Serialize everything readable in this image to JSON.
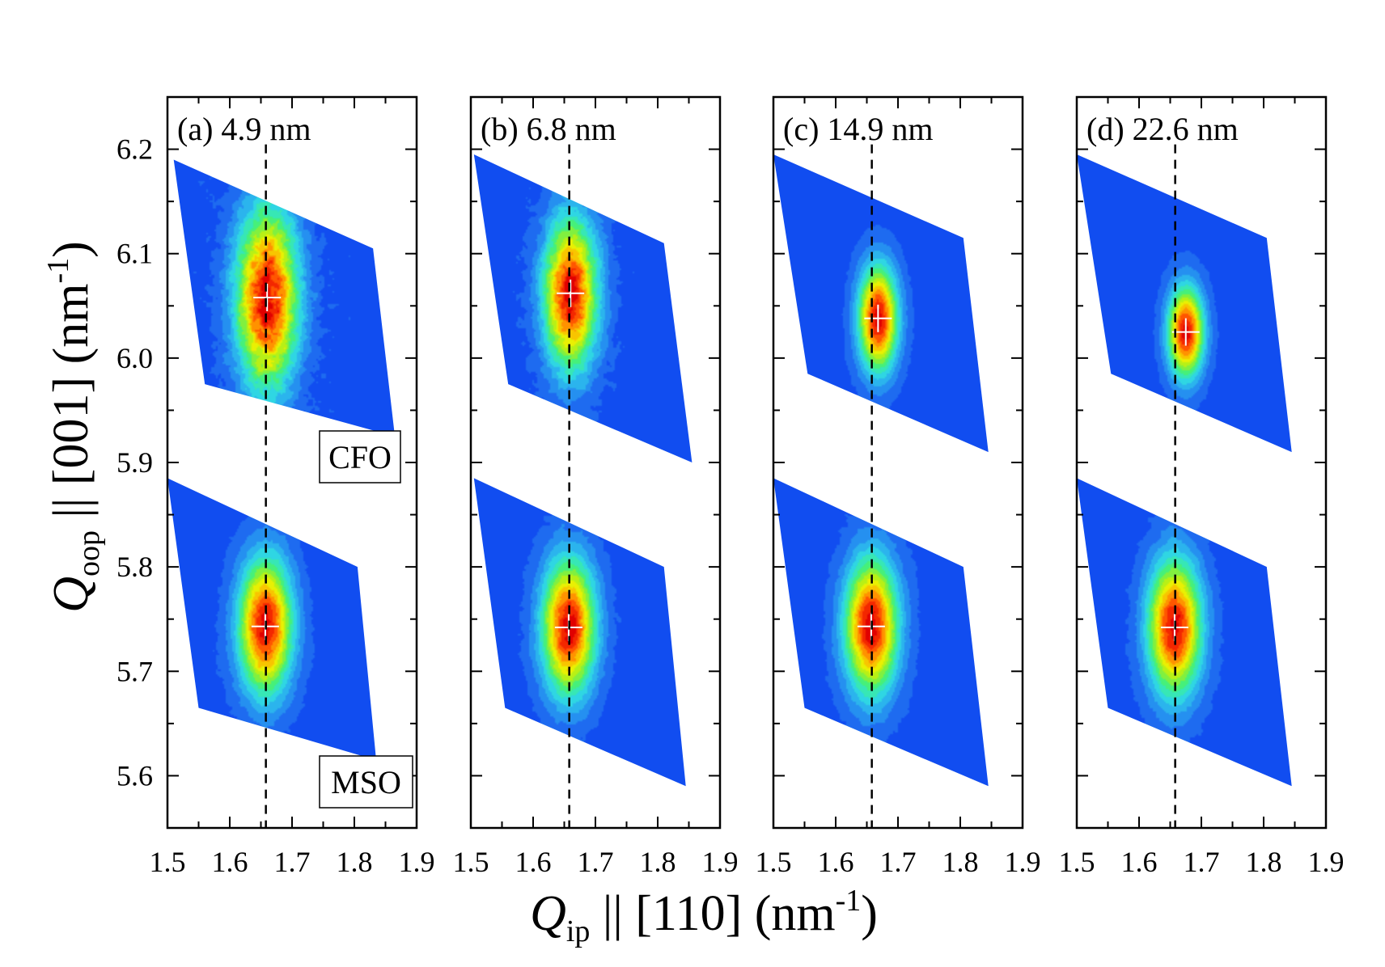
{
  "chart_data": {
    "type": "heatmap",
    "description_type": "reciprocal space maps",
    "xlabel": {
      "symbol": "Q",
      "sub": "ip",
      "rest": " || [110] (nm",
      "sup": "-1",
      "close": ")"
    },
    "ylabel": {
      "symbol": "Q",
      "sub": "oop",
      "rest": " || [001] (nm",
      "sup": "-1",
      "close": ")"
    },
    "xlim": [
      1.5,
      1.9
    ],
    "ylim": [
      5.55,
      6.25
    ],
    "xticks": [
      1.5,
      1.6,
      1.7,
      1.8,
      1.9
    ],
    "xtick_labels": [
      "1.5",
      "1.6",
      "1.7",
      "1.8",
      "1.9"
    ],
    "yticks": [
      5.6,
      5.7,
      5.8,
      5.9,
      6.0,
      6.1,
      6.2
    ],
    "ytick_labels": [
      "5.6",
      "5.7",
      "5.8",
      "5.9",
      "6.0",
      "6.1",
      "6.2"
    ],
    "colormap": [
      "#0a3cf0",
      "#1e6cf0",
      "#2aa8f0",
      "#30e0e0",
      "#40f080",
      "#a0f020",
      "#f0f000",
      "#ffa000",
      "#ff4000",
      "#e00000"
    ],
    "background_color": "#0b3ff2",
    "peak_marker_color": "#ffffff",
    "reference_line_x": 1.658,
    "box_labels": {
      "film": "CFO",
      "substrate": "MSO"
    },
    "panels": [
      {
        "label": "(a) 4.9 nm",
        "film": {
          "name": "CFO",
          "peak_x": 1.66,
          "peak_y": 6.058,
          "sx": 0.035,
          "sy": 0.06,
          "noise": 0.22,
          "region": [
            [
              1.51,
              6.19
            ],
            [
              1.83,
              6.105
            ],
            [
              1.865,
              5.925
            ],
            [
              1.56,
              5.975
            ]
          ]
        },
        "substrate": {
          "name": "MSO",
          "peak_x": 1.657,
          "peak_y": 5.743,
          "sx": 0.03,
          "sy": 0.045,
          "noise": 0.1,
          "region": [
            [
              1.5,
              5.885
            ],
            [
              1.805,
              5.8
            ],
            [
              1.835,
              5.615
            ],
            [
              1.55,
              5.665
            ]
          ]
        }
      },
      {
        "label": "(b) 6.8 nm",
        "film": {
          "name": "CFO",
          "peak_x": 1.66,
          "peak_y": 6.062,
          "sx": 0.03,
          "sy": 0.05,
          "noise": 0.18,
          "region": [
            [
              1.505,
              6.195
            ],
            [
              1.81,
              6.11
            ],
            [
              1.855,
              5.9
            ],
            [
              1.56,
              5.975
            ]
          ]
        },
        "substrate": {
          "name": "MSO",
          "peak_x": 1.657,
          "peak_y": 5.742,
          "sx": 0.03,
          "sy": 0.045,
          "noise": 0.1,
          "region": [
            [
              1.505,
              5.885
            ],
            [
              1.81,
              5.8
            ],
            [
              1.845,
              5.59
            ],
            [
              1.555,
              5.665
            ]
          ]
        }
      },
      {
        "label": "(c) 14.9 nm",
        "film": {
          "name": "CFO",
          "peak_x": 1.668,
          "peak_y": 6.038,
          "sx": 0.022,
          "sy": 0.035,
          "noise": 0.06,
          "region": [
            [
              1.5,
              6.195
            ],
            [
              1.805,
              6.115
            ],
            [
              1.845,
              5.91
            ],
            [
              1.555,
              5.985
            ]
          ]
        },
        "substrate": {
          "name": "MSO",
          "peak_x": 1.657,
          "peak_y": 5.743,
          "sx": 0.03,
          "sy": 0.045,
          "noise": 0.08,
          "region": [
            [
              1.5,
              5.885
            ],
            [
              1.805,
              5.8
            ],
            [
              1.845,
              5.59
            ],
            [
              1.55,
              5.665
            ]
          ]
        }
      },
      {
        "label": "(d) 22.6 nm",
        "film": {
          "name": "CFO",
          "peak_x": 1.675,
          "peak_y": 6.025,
          "sx": 0.02,
          "sy": 0.03,
          "noise": 0.05,
          "region": [
            [
              1.5,
              6.195
            ],
            [
              1.805,
              6.115
            ],
            [
              1.845,
              5.91
            ],
            [
              1.555,
              5.985
            ]
          ]
        },
        "substrate": {
          "name": "MSO",
          "peak_x": 1.657,
          "peak_y": 5.742,
          "sx": 0.03,
          "sy": 0.045,
          "noise": 0.08,
          "region": [
            [
              1.5,
              5.885
            ],
            [
              1.805,
              5.8
            ],
            [
              1.845,
              5.59
            ],
            [
              1.55,
              5.665
            ]
          ]
        }
      }
    ]
  }
}
